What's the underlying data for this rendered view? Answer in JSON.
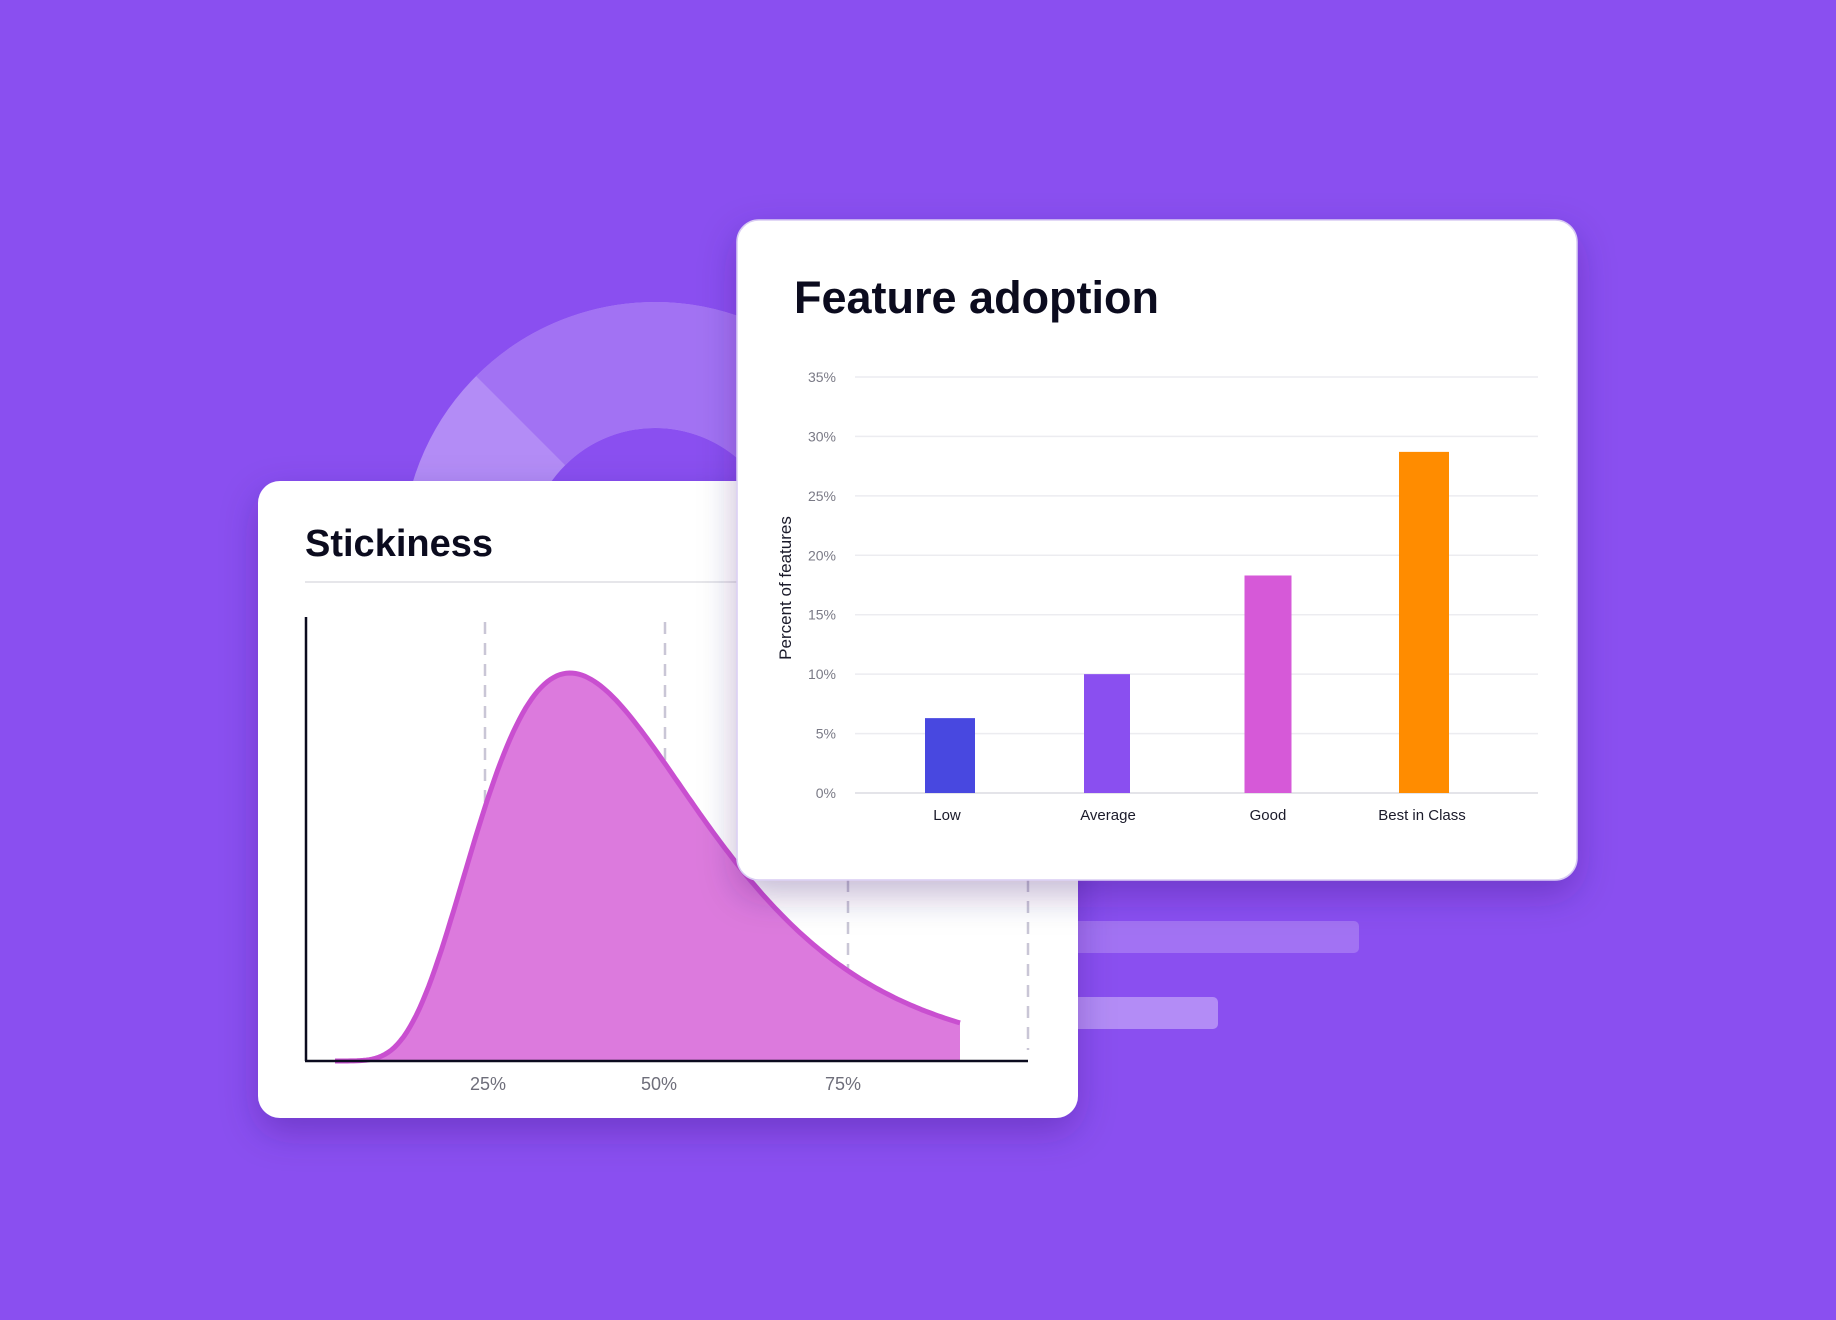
{
  "colors": {
    "background": "#8a4ff0",
    "card": "#ffffff",
    "curve_fill": "#dc7add",
    "curve_stroke": "#c94fd0",
    "bar_low": "#4848e0",
    "bar_average": "#8a4ff0",
    "bar_good": "#d659d8",
    "bar_best": "#ff8c00",
    "donut_light": "#b38cf6",
    "donut_mid": "#a272f3"
  },
  "stickiness": {
    "title": "Stickiness"
  },
  "chart_data": [
    {
      "type": "area",
      "title": "Stickiness",
      "xlabel": "",
      "ylabel": "",
      "x_ticks": [
        "25%",
        "50%",
        "75%"
      ],
      "xlim": [
        0,
        100
      ],
      "grid": true
    },
    {
      "type": "bar",
      "title": "Feature adoption",
      "categories": [
        "Low",
        "Average",
        "Good",
        "Best in Class"
      ],
      "values": [
        6.3,
        10,
        18.3,
        28.7
      ],
      "value_unit": "%",
      "xlabel": "",
      "ylabel": "Percent of features",
      "ylim": [
        0,
        35
      ],
      "y_ticks": [
        "0%",
        "5%",
        "10%",
        "15%",
        "20%",
        "25%",
        "30%",
        "35%"
      ],
      "grid": true
    }
  ]
}
